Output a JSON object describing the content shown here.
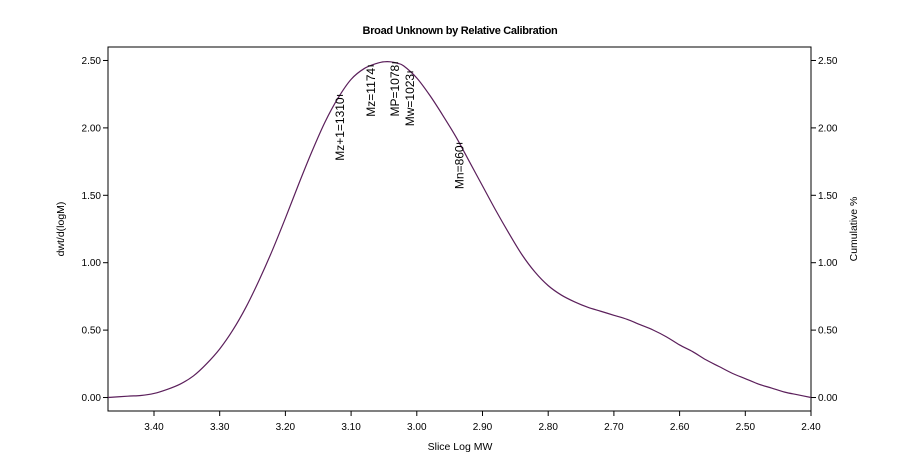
{
  "chart_data": {
    "type": "line",
    "title": "Broad Unknown by Relative Calibration",
    "xlabel": "Slice Log MW",
    "ylabel": "dwt/d(logM)",
    "y2label": "Cumulative %",
    "xlim": [
      3.47,
      2.4
    ],
    "ylim": [
      -0.1,
      2.6
    ],
    "x_reversed": true,
    "x_ticks": [
      3.4,
      3.3,
      3.2,
      3.1,
      3.0,
      2.9,
      2.8,
      2.7,
      2.6,
      2.5,
      2.4
    ],
    "x_tick_labels": [
      "3.40",
      "3.30",
      "3.20",
      "3.10",
      "3.00",
      "2.90",
      "2.80",
      "2.70",
      "2.60",
      "2.50",
      "2.40"
    ],
    "y_ticks": [
      0,
      0.5,
      1.0,
      1.5,
      2.0,
      2.5
    ],
    "y_tick_labels": [
      "0.00",
      "0.50",
      "1.00",
      "1.50",
      "2.00",
      "2.50"
    ],
    "y2_tick_labels": [
      "0.00",
      "0.50",
      "1.00",
      "1.50",
      "2.00",
      "2.50"
    ],
    "grid": false,
    "line_color": "#5b1f5b",
    "series": [
      {
        "name": "dwt/d(logM)",
        "x": [
          3.47,
          3.44,
          3.42,
          3.4,
          3.38,
          3.36,
          3.34,
          3.32,
          3.3,
          3.28,
          3.26,
          3.24,
          3.22,
          3.2,
          3.18,
          3.16,
          3.14,
          3.12,
          3.1,
          3.08,
          3.06,
          3.05,
          3.04,
          3.03,
          3.02,
          3.0,
          2.98,
          2.96,
          2.94,
          2.92,
          2.9,
          2.88,
          2.86,
          2.84,
          2.82,
          2.8,
          2.78,
          2.76,
          2.74,
          2.72,
          2.7,
          2.68,
          2.66,
          2.64,
          2.62,
          2.6,
          2.58,
          2.56,
          2.54,
          2.52,
          2.5,
          2.48,
          2.46,
          2.44,
          2.42,
          2.4
        ],
        "y": [
          0.0,
          0.01,
          0.015,
          0.03,
          0.06,
          0.1,
          0.16,
          0.25,
          0.36,
          0.5,
          0.67,
          0.87,
          1.09,
          1.33,
          1.58,
          1.82,
          2.04,
          2.22,
          2.36,
          2.44,
          2.48,
          2.49,
          2.49,
          2.48,
          2.46,
          2.37,
          2.24,
          2.09,
          1.93,
          1.75,
          1.57,
          1.39,
          1.22,
          1.06,
          0.93,
          0.83,
          0.76,
          0.71,
          0.67,
          0.64,
          0.61,
          0.58,
          0.54,
          0.5,
          0.45,
          0.39,
          0.34,
          0.28,
          0.23,
          0.18,
          0.14,
          0.1,
          0.07,
          0.04,
          0.02,
          0.0
        ]
      }
    ],
    "annotations": [
      {
        "label": "Mz+1=1310",
        "x": 3.117
      },
      {
        "label": "Mz=1174",
        "x": 3.07
      },
      {
        "label": "MP=1078",
        "x": 3.033
      },
      {
        "label": "Mw=1023",
        "x": 3.01
      },
      {
        "label": "Mn=860",
        "x": 2.935
      }
    ]
  }
}
